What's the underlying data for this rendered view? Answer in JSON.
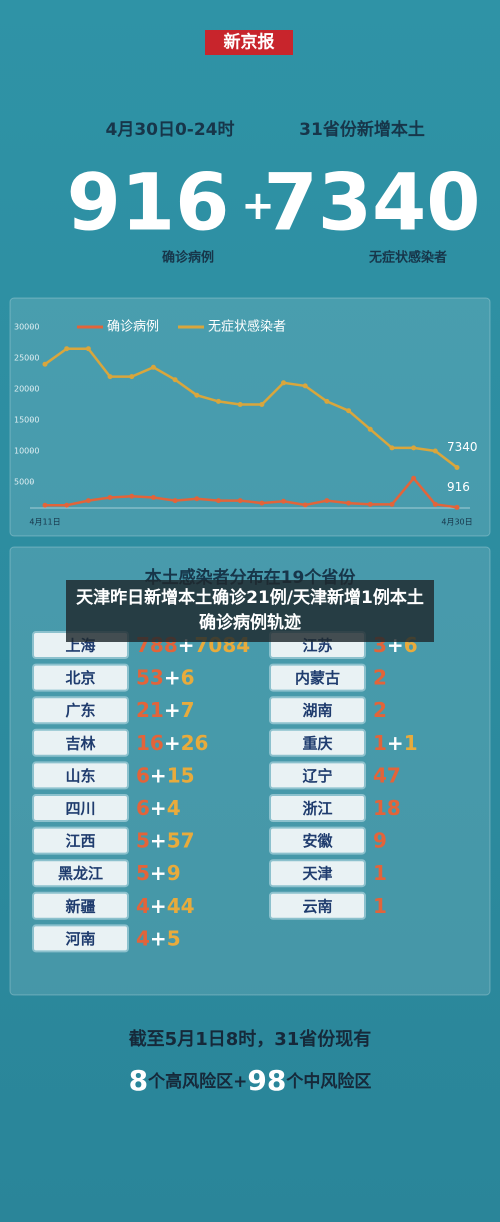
{
  "header": {
    "logo": "新京报",
    "date": "4月30日0-24时",
    "scope": "31省份新增本土",
    "confirmed": 916,
    "plus": "+",
    "asymptomatic": 7340,
    "confirmed_label": "确诊病例",
    "asymptomatic_label": "无症状感染者"
  },
  "chart_data": {
    "type": "line",
    "categories": [
      "4月11日",
      null,
      null,
      null,
      null,
      null,
      null,
      null,
      null,
      null,
      null,
      null,
      null,
      null,
      null,
      null,
      null,
      null,
      null,
      "4月30日"
    ],
    "series": [
      {
        "name": "确诊病例",
        "color": "#e2643a",
        "values": [
          1250,
          1250,
          2000,
          2500,
          2700,
          2500,
          2000,
          2300,
          2000,
          2000,
          1600,
          1900,
          1300,
          2000,
          1600,
          1400,
          1400,
          5600,
          1400,
          916
        ]
      },
      {
        "name": "无症状感染者",
        "color": "#d9a63c",
        "values": [
          24000,
          26500,
          26500,
          22000,
          22000,
          23500,
          21500,
          19000,
          18000,
          17500,
          17500,
          21000,
          20500,
          18000,
          16500,
          13500,
          10500,
          10500,
          10000,
          7340
        ]
      }
    ],
    "ylim": [
      0,
      30000
    ],
    "yticks": [
      5000,
      10000,
      15000,
      20000,
      25000,
      30000
    ],
    "grid": false,
    "legend": "top"
  },
  "table": {
    "title": "本土感染者分布在19个省份",
    "separator": "+",
    "left": [
      {
        "name": "上海",
        "values": [
          788,
          7084
        ]
      },
      {
        "name": "北京",
        "values": [
          53,
          6
        ]
      },
      {
        "name": "广东",
        "values": [
          21,
          7
        ]
      },
      {
        "name": "吉林",
        "values": [
          16,
          26
        ]
      },
      {
        "name": "山东",
        "values": [
          6,
          15
        ]
      },
      {
        "name": "四川",
        "values": [
          6,
          4
        ]
      },
      {
        "name": "江西",
        "values": [
          5,
          57
        ]
      },
      {
        "name": "黑龙江",
        "values": [
          5,
          9
        ]
      },
      {
        "name": "新疆",
        "values": [
          4,
          44
        ]
      },
      {
        "name": "河南",
        "values": [
          4,
          5
        ]
      }
    ],
    "right": [
      {
        "name": "江苏",
        "values": [
          3,
          6
        ]
      },
      {
        "name": "内蒙古",
        "values": [
          2
        ]
      },
      {
        "name": "湖南",
        "values": [
          2
        ]
      },
      {
        "name": "重庆",
        "values": [
          1,
          1
        ]
      },
      {
        "name": "辽宁",
        "values": [
          47
        ]
      },
      {
        "name": "浙江",
        "values": [
          18
        ]
      },
      {
        "name": "安徽",
        "values": [
          9
        ]
      },
      {
        "name": "天津",
        "values": [
          1
        ]
      },
      {
        "name": "云南",
        "values": [
          1
        ]
      }
    ]
  },
  "caption": "天津昨日新增本土确诊21例/天津新增1例本土确诊病例轨迹",
  "footer": {
    "line1": "截至5月1日8时，31省份现有",
    "high": 8,
    "high_label": "个高风险区+",
    "mid": 98,
    "mid_label": "个中风险区"
  }
}
